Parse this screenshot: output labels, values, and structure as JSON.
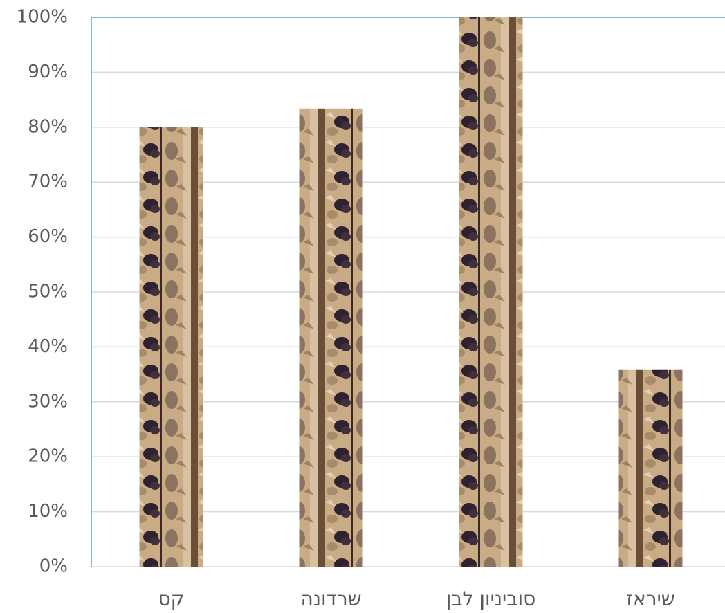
{
  "chart_data": {
    "type": "bar",
    "categories": [
      "קס",
      "שרדונה",
      "סוביניון לבן",
      "שיראז"
    ],
    "values": [
      80,
      83.4,
      100,
      35.8
    ],
    "ylim": [
      0,
      100
    ],
    "yticks": [
      {
        "value": 0,
        "label": "0%"
      },
      {
        "value": 10,
        "label": "10%"
      },
      {
        "value": 20,
        "label": "20%"
      },
      {
        "value": 30,
        "label": "30%"
      },
      {
        "value": 40,
        "label": "40%"
      },
      {
        "value": 50,
        "label": "50%"
      },
      {
        "value": 60,
        "label": "60%"
      },
      {
        "value": 70,
        "label": "70%"
      },
      {
        "value": 80,
        "label": "80%"
      },
      {
        "value": 90,
        "label": "90%"
      },
      {
        "value": 100,
        "label": "100%"
      }
    ],
    "grid": true
  }
}
